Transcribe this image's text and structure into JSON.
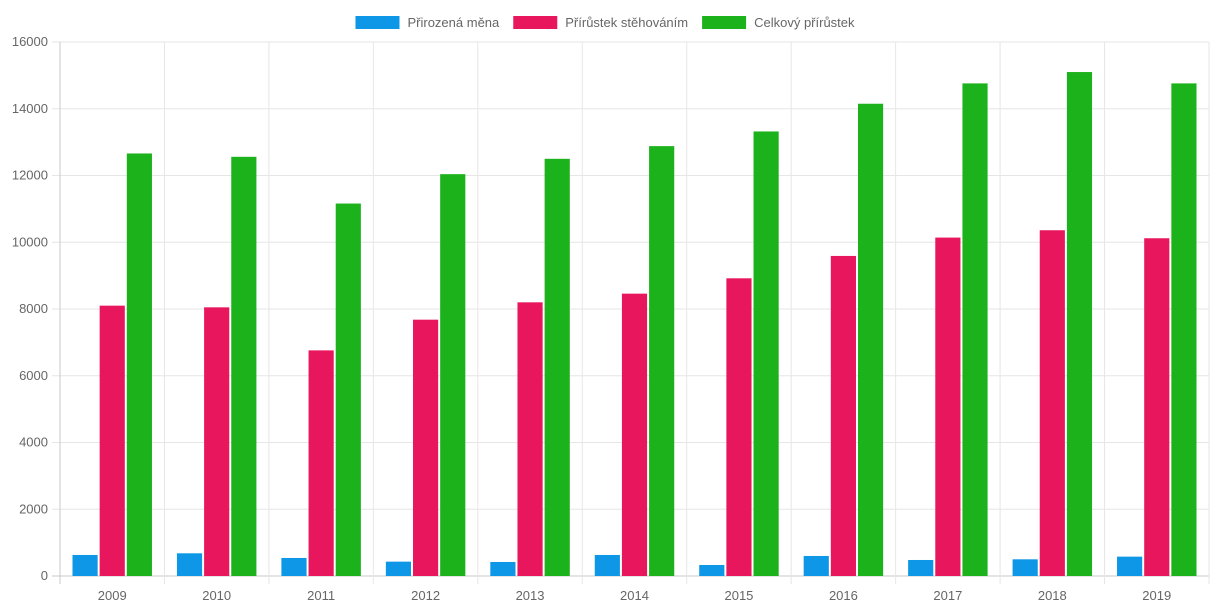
{
  "chart_data": {
    "type": "bar",
    "categories": [
      "2009",
      "2010",
      "2011",
      "2012",
      "2013",
      "2014",
      "2015",
      "2016",
      "2017",
      "2018",
      "2019"
    ],
    "series": [
      {
        "name": "Přirozená měna",
        "color": "#0d97e6",
        "values": [
          630,
          680,
          540,
          430,
          420,
          630,
          330,
          600,
          480,
          500,
          580
        ]
      },
      {
        "name": "Přírůstek stěhováním",
        "color": "#e8175d",
        "values": [
          8100,
          8050,
          6760,
          7680,
          8200,
          8460,
          8920,
          9590,
          10140,
          10360,
          10120
        ]
      },
      {
        "name": "Celkový přírůstek",
        "color": "#1cb21c",
        "values": [
          12660,
          12560,
          11160,
          12040,
          12500,
          12880,
          13320,
          14150,
          14760,
          15100,
          14760
        ]
      }
    ],
    "ylim": [
      0,
      16000
    ],
    "yticks": [
      0,
      2000,
      4000,
      6000,
      8000,
      10000,
      12000,
      14000,
      16000
    ],
    "grid": true,
    "legend": "top-center",
    "title": "",
    "xlabel": "",
    "ylabel": ""
  }
}
